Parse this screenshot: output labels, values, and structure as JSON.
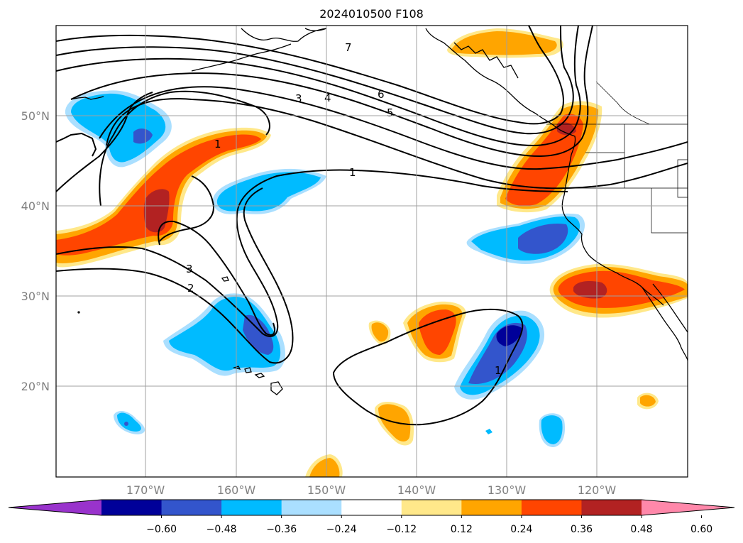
{
  "title": "2024010500 F108",
  "lat_labels": [
    "50°N",
    "40°N",
    "30°N",
    "20°N"
  ],
  "lon_labels": [
    "170°W",
    "160°W",
    "150°W",
    "140°W",
    "130°W",
    "120°W"
  ],
  "colorbar": {
    "ticks": [
      "−0.60",
      "−0.48",
      "−0.36",
      "−0.24",
      "−0.12",
      "0.12",
      "0.24",
      "0.36",
      "0.48",
      "0.60"
    ],
    "colors": [
      "#9933cc",
      "#000099",
      "#3355cc",
      "#00bbff",
      "#aadfff",
      "#ffffff",
      "#ffe88a",
      "#ffa500",
      "#ff4500",
      "#b22222",
      "#ff88aa"
    ]
  },
  "contour_labels": [
    "7",
    "6",
    "5",
    "4",
    "3",
    "1",
    "1",
    "3",
    "2",
    "1"
  ],
  "fill_colors": {
    "lightblue": "#aadfff",
    "blue": "#00bbff",
    "medblue": "#3355cc",
    "navy": "#000099",
    "yellow": "#ffe88a",
    "orange": "#ffa500",
    "redorange": "#ff4500",
    "darkred": "#b22222"
  }
}
